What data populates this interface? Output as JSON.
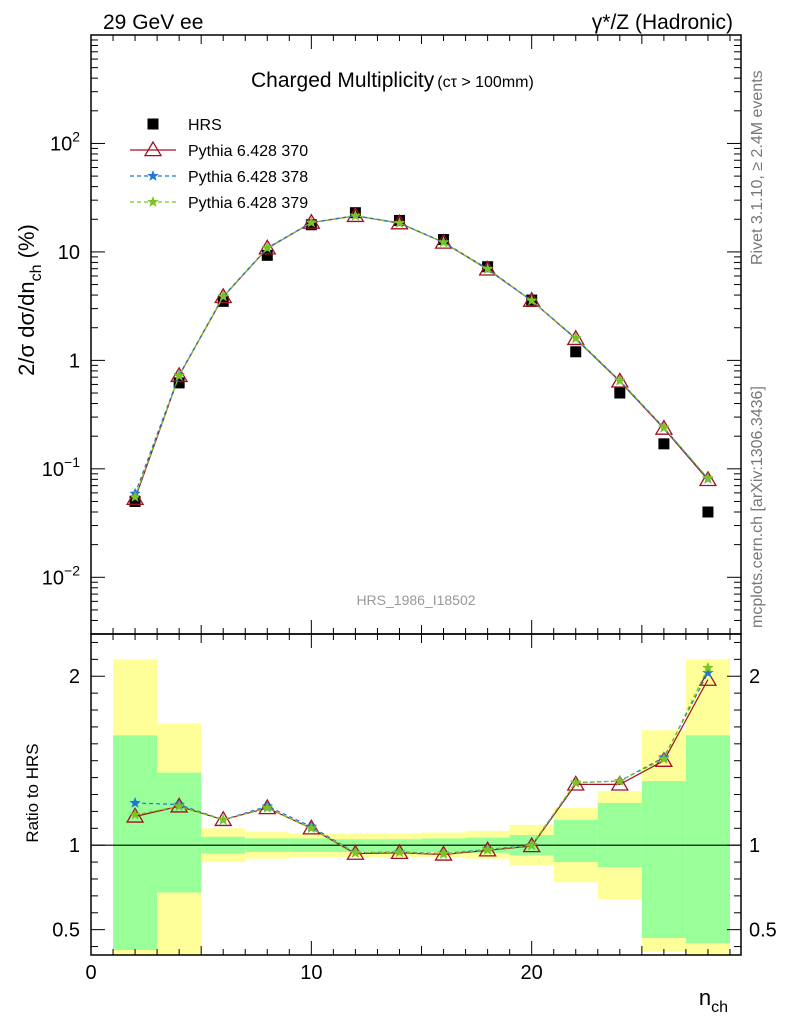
{
  "header": {
    "left": "29 GeV ee",
    "right": "γ*/Z (Hadronic)"
  },
  "side_labels": {
    "rivet": "Rivet 3.1.10, ≥ 2.4M events",
    "mcplots": "mcplots.cern.ch [arXiv:1306.3436]"
  },
  "chart_data": [
    {
      "type": "scatter",
      "title": "Charged Multiplicity",
      "title_suffix": "(cτ > 100mm)",
      "ylabel": "2/σ dσ/dn",
      "ylabel_sub": "ch",
      "ylabel_unit": " (%)",
      "yscale": "log",
      "xlim": [
        0,
        29.5
      ],
      "ylim": [
        0.003,
        1000
      ],
      "y_ticks": [
        {
          "value": 0.01,
          "base": "10",
          "exp": "−2"
        },
        {
          "value": 0.1,
          "base": "10",
          "exp": "−1"
        },
        {
          "value": 1,
          "base": "1",
          "exp": ""
        },
        {
          "value": 10,
          "base": "10",
          "exp": ""
        },
        {
          "value": 100,
          "base": "10",
          "exp": "2"
        }
      ],
      "watermark": "HRS_1986_I18502",
      "legend_position": "top-left",
      "x": [
        2,
        4,
        6,
        8,
        10,
        12,
        14,
        16,
        18,
        20,
        22,
        24,
        26,
        28
      ],
      "series": [
        {
          "name": "HRS",
          "color": "#000000",
          "marker": "square",
          "line": "none",
          "values": [
            0.05,
            0.62,
            3.5,
            9.3,
            17.8,
            23.0,
            19.5,
            13.0,
            7.3,
            3.6,
            1.2,
            0.5,
            0.17,
            0.04
          ]
        },
        {
          "name": "Pythia 6.428 370",
          "color": "#a01020",
          "marker": "triangle-open",
          "line": "solid",
          "values": [
            0.053,
            0.72,
            3.85,
            10.8,
            18.6,
            21.5,
            18.4,
            12.2,
            6.9,
            3.55,
            1.58,
            0.64,
            0.235,
            0.079
          ]
        },
        {
          "name": "Pythia 6.428 378",
          "color": "#1f78d4",
          "marker": "star",
          "line": "dashed",
          "values": [
            0.059,
            0.73,
            3.9,
            10.9,
            18.7,
            21.6,
            18.5,
            12.3,
            7.0,
            3.56,
            1.6,
            0.65,
            0.24,
            0.081
          ]
        },
        {
          "name": "Pythia 6.428 379",
          "color": "#7cc41f",
          "marker": "star",
          "line": "dashed",
          "values": [
            0.055,
            0.72,
            3.88,
            10.85,
            18.65,
            21.55,
            18.45,
            12.25,
            6.95,
            3.56,
            1.6,
            0.65,
            0.24,
            0.082
          ]
        }
      ]
    },
    {
      "type": "scatter",
      "xlabel": "n",
      "xlabel_sub": "ch",
      "ylabel": "Ratio to HRS",
      "ylim": [
        0.35,
        2.25
      ],
      "xlim": [
        0,
        29.5
      ],
      "y_ticks": [
        0.5,
        1,
        2
      ],
      "x_ticks": [
        0,
        10,
        20
      ],
      "reference_line": 1,
      "bands": [
        {
          "x0": 1,
          "x1": 3,
          "yellow": [
            0.35,
            2.1
          ],
          "green": [
            0.38,
            1.65
          ]
        },
        {
          "x0": 3,
          "x1": 5,
          "yellow": [
            0.35,
            1.72
          ],
          "green": [
            0.72,
            1.43
          ]
        },
        {
          "x0": 5,
          "x1": 7,
          "yellow": [
            0.9,
            1.1
          ],
          "green": [
            0.95,
            1.05
          ]
        },
        {
          "x0": 7,
          "x1": 9,
          "yellow": [
            0.92,
            1.08
          ],
          "green": [
            0.96,
            1.04
          ]
        },
        {
          "x0": 9,
          "x1": 11,
          "yellow": [
            0.93,
            1.07
          ],
          "green": [
            0.96,
            1.04
          ]
        },
        {
          "x0": 11,
          "x1": 13,
          "yellow": [
            0.93,
            1.07
          ],
          "green": [
            0.96,
            1.035
          ]
        },
        {
          "x0": 13,
          "x1": 15,
          "yellow": [
            0.93,
            1.07
          ],
          "green": [
            0.96,
            1.035
          ]
        },
        {
          "x0": 15,
          "x1": 17,
          "yellow": [
            0.93,
            1.075
          ],
          "green": [
            0.96,
            1.04
          ]
        },
        {
          "x0": 17,
          "x1": 19,
          "yellow": [
            0.92,
            1.085
          ],
          "green": [
            0.955,
            1.045
          ]
        },
        {
          "x0": 19,
          "x1": 21,
          "yellow": [
            0.88,
            1.12
          ],
          "green": [
            0.94,
            1.06
          ]
        },
        {
          "x0": 21,
          "x1": 23,
          "yellow": [
            0.78,
            1.22
          ],
          "green": [
            0.9,
            1.15
          ]
        },
        {
          "x0": 23,
          "x1": 25,
          "yellow": [
            0.68,
            1.32
          ],
          "green": [
            0.87,
            1.25
          ]
        },
        {
          "x0": 25,
          "x1": 27,
          "yellow": [
            0.37,
            1.68
          ],
          "green": [
            0.45,
            1.38
          ]
        },
        {
          "x0": 27,
          "x1": 29,
          "yellow": [
            0.35,
            2.1
          ],
          "green": [
            0.42,
            1.65
          ]
        }
      ],
      "x": [
        2,
        4,
        6,
        8,
        10,
        12,
        14,
        16,
        18,
        20,
        22,
        24,
        26,
        28
      ],
      "series": [
        {
          "name": "Pythia 6.428 370",
          "color": "#a01020",
          "marker": "triangle-open",
          "line": "solid",
          "values": [
            1.17,
            1.23,
            1.15,
            1.22,
            1.1,
            0.95,
            0.955,
            0.945,
            0.97,
            0.995,
            1.36,
            1.36,
            1.5,
            1.98
          ]
        },
        {
          "name": "Pythia 6.428 378",
          "color": "#1f78d4",
          "marker": "star",
          "line": "dashed",
          "values": [
            1.25,
            1.24,
            1.15,
            1.23,
            1.11,
            0.955,
            0.96,
            0.95,
            0.975,
            1.0,
            1.37,
            1.38,
            1.52,
            2.02
          ]
        },
        {
          "name": "Pythia 6.428 379",
          "color": "#7cc41f",
          "marker": "star",
          "line": "dashed",
          "values": [
            1.18,
            1.23,
            1.15,
            1.22,
            1.1,
            0.955,
            0.958,
            0.948,
            0.972,
            0.998,
            1.37,
            1.38,
            1.51,
            2.05
          ]
        }
      ]
    }
  ]
}
